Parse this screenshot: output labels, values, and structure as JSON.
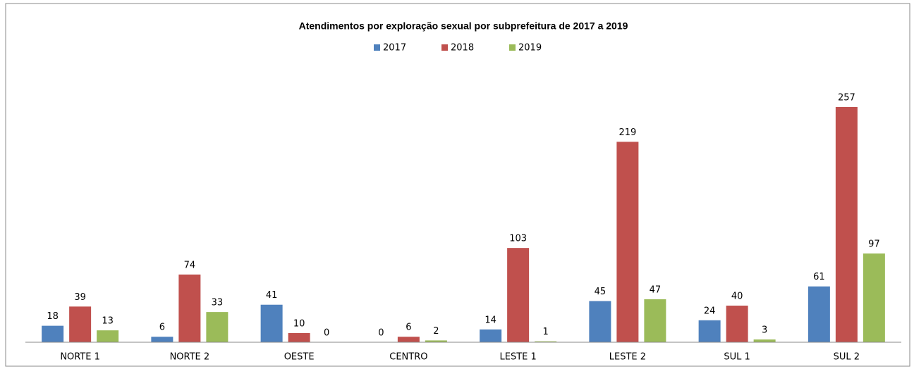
{
  "chart_data": {
    "type": "bar",
    "title": "Atendimentos por exploração sexual por subprefeitura de 2017 a 2019",
    "categories": [
      "NORTE 1",
      "NORTE 2",
      "OESTE",
      "CENTRO",
      "LESTE 1",
      "LESTE 2",
      "SUL 1",
      "SUL 2"
    ],
    "series": [
      {
        "name": "2017",
        "color": "#4f81bd",
        "values": [
          18,
          6,
          41,
          0,
          14,
          45,
          24,
          61
        ]
      },
      {
        "name": "2018",
        "color": "#c0504d",
        "values": [
          39,
          74,
          10,
          6,
          103,
          219,
          40,
          257
        ]
      },
      {
        "name": "2019",
        "color": "#9bbb59",
        "values": [
          13,
          33,
          0,
          2,
          1,
          47,
          3,
          97
        ]
      }
    ],
    "legend": "top"
  }
}
